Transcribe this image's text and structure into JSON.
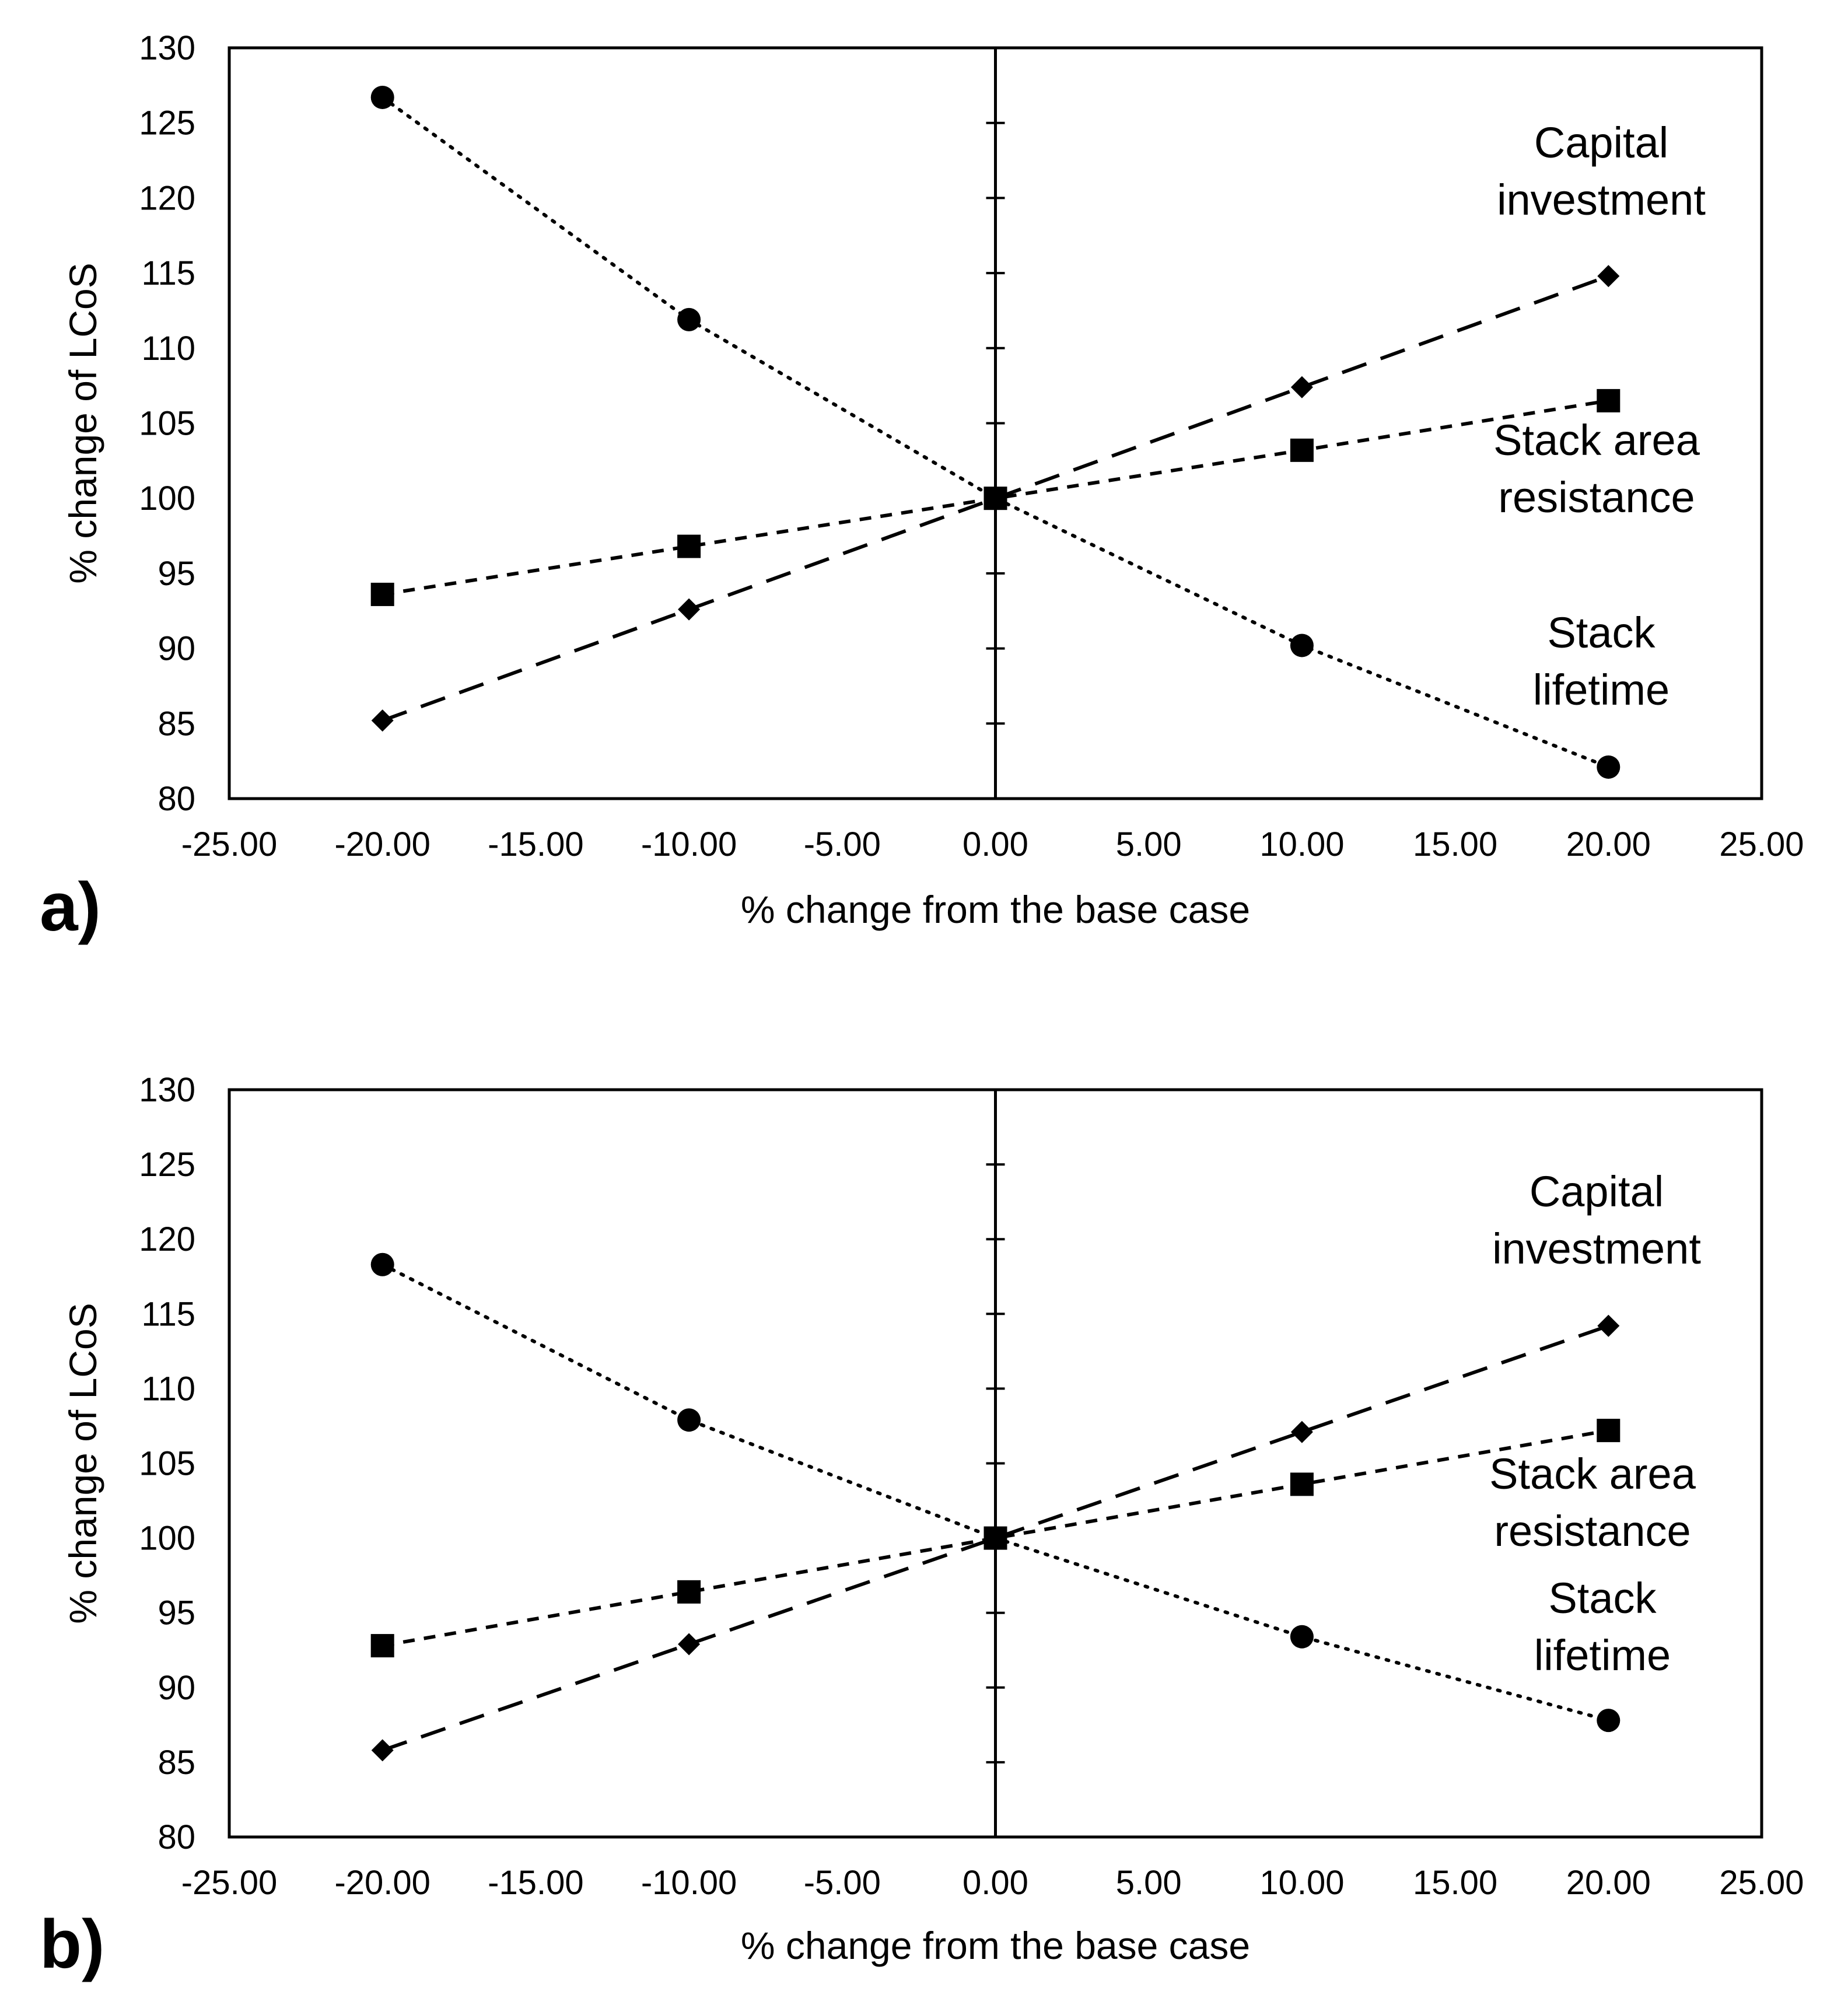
{
  "chart_data": [
    {
      "type": "line",
      "panel_label": "a)",
      "xlabel": "% change from the base case",
      "ylabel": "% change of LCoS",
      "xlim": [
        -25,
        25
      ],
      "ylim": [
        80,
        130
      ],
      "x_ticks": [
        "-25.00",
        "-20.00",
        "-15.00",
        "-10.00",
        "-5.00",
        "0.00",
        "5.00",
        "10.00",
        "15.00",
        "20.00",
        "25.00"
      ],
      "y_ticks": [
        "80",
        "85",
        "90",
        "95",
        "100",
        "105",
        "110",
        "115",
        "120",
        "125",
        "130"
      ],
      "grid": false,
      "series": [
        {
          "marker": "circle",
          "line_style": "dotted",
          "label_lines": [
            "Stack",
            "lifetime"
          ],
          "points": [
            {
              "x": -20,
              "y": 126.7
            },
            {
              "x": -10,
              "y": 111.9
            },
            {
              "x": 0,
              "y": 100
            },
            {
              "x": 10,
              "y": 90.2
            },
            {
              "x": 20,
              "y": 82.1
            }
          ]
        },
        {
          "marker": "diamond",
          "line_style": "long-dash",
          "label_lines": [
            "Capital",
            "investment"
          ],
          "points": [
            {
              "x": -20,
              "y": 85.2
            },
            {
              "x": -10,
              "y": 92.6
            },
            {
              "x": 0,
              "y": 100
            },
            {
              "x": 10,
              "y": 107.4
            },
            {
              "x": 20,
              "y": 114.8
            }
          ]
        },
        {
          "marker": "square",
          "line_style": "short-dash",
          "label_lines": [
            "Stack area",
            "resistance"
          ],
          "points": [
            {
              "x": -20,
              "y": 93.6
            },
            {
              "x": -10,
              "y": 96.8
            },
            {
              "x": 0,
              "y": 100
            },
            {
              "x": 10,
              "y": 103.2
            },
            {
              "x": 20,
              "y": 106.5
            }
          ]
        }
      ]
    },
    {
      "type": "line",
      "panel_label": "b)",
      "xlabel": "% change from the base case",
      "ylabel": "% change of LCoS",
      "xlim": [
        -25,
        25
      ],
      "ylim": [
        80,
        130
      ],
      "x_ticks": [
        "-25.00",
        "-20.00",
        "-15.00",
        "-10.00",
        "-5.00",
        "0.00",
        "5.00",
        "10.00",
        "15.00",
        "20.00",
        "25.00"
      ],
      "y_ticks": [
        "80",
        "85",
        "90",
        "95",
        "100",
        "105",
        "110",
        "115",
        "120",
        "125",
        "130"
      ],
      "grid": false,
      "series": [
        {
          "marker": "circle",
          "line_style": "dotted",
          "label_lines": [
            "Stack",
            "lifetime"
          ],
          "points": [
            {
              "x": -20,
              "y": 118.3
            },
            {
              "x": -10,
              "y": 107.9
            },
            {
              "x": 0,
              "y": 100
            },
            {
              "x": 10,
              "y": 93.4
            },
            {
              "x": 20,
              "y": 87.8
            }
          ]
        },
        {
          "marker": "diamond",
          "line_style": "long-dash",
          "label_lines": [
            "Capital",
            "investment"
          ],
          "points": [
            {
              "x": -20,
              "y": 85.8
            },
            {
              "x": -10,
              "y": 92.9
            },
            {
              "x": 0,
              "y": 100
            },
            {
              "x": 10,
              "y": 107.1
            },
            {
              "x": 20,
              "y": 114.2
            }
          ]
        },
        {
          "marker": "square",
          "line_style": "short-dash",
          "label_lines": [
            "Stack area",
            "resistance"
          ],
          "points": [
            {
              "x": -20,
              "y": 92.8
            },
            {
              "x": -10,
              "y": 96.4
            },
            {
              "x": 0,
              "y": 100
            },
            {
              "x": 10,
              "y": 103.6
            },
            {
              "x": 20,
              "y": 107.2
            }
          ]
        }
      ]
    }
  ]
}
